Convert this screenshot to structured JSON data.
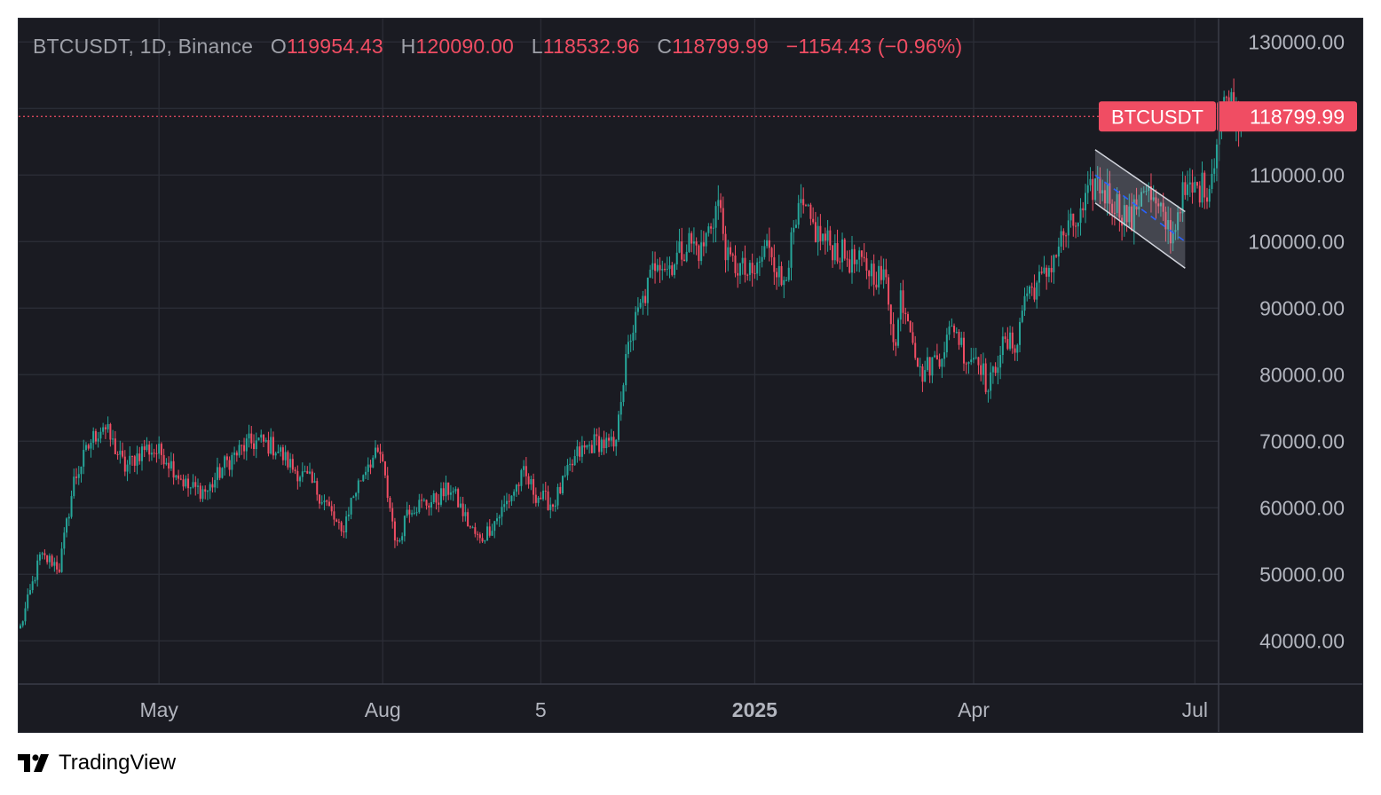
{
  "legend": {
    "symbol": "BTCUSDT, 1D, Binance",
    "o_label": "O",
    "o_value": "119954.43",
    "h_label": "H",
    "h_value": "120090.00",
    "l_label": "L",
    "l_value": "118532.96",
    "c_label": "C",
    "c_value": "118799.99",
    "change": "−1154.43 (−0.96%)"
  },
  "price_tag": {
    "symbol": "BTCUSDT",
    "price": "118799.99"
  },
  "brand": "TradingView",
  "colors": {
    "up": "#26a69a",
    "down": "#f04d63",
    "background": "#1a1b22",
    "grid": "#2d2f38",
    "axis_text": "#b2b5be",
    "channel": "#d1d4dc",
    "midline": "#2962ff"
  },
  "chart_data": {
    "type": "candlestick",
    "title": "BTCUSDT, 1D, Binance",
    "x_range": [
      "2024-03-05",
      "2025-07-29"
    ],
    "ylim": [
      33500,
      133500
    ],
    "y_ticks": [
      {
        "value": 130000,
        "label": "130000.00"
      },
      {
        "value": 110000,
        "label": "110000.00"
      },
      {
        "value": 100000,
        "label": "100000.00"
      },
      {
        "value": 90000,
        "label": "90000.00"
      },
      {
        "value": 80000,
        "label": "80000.00"
      },
      {
        "value": 70000,
        "label": "70000.00"
      },
      {
        "value": 60000,
        "label": "60000.00"
      },
      {
        "value": 50000,
        "label": "50000.00"
      },
      {
        "value": 40000,
        "label": "40000.00"
      }
    ],
    "x_ticks": [
      {
        "date": "2024-05-01",
        "label": "May",
        "bold": false
      },
      {
        "date": "2024-08-01",
        "label": "Aug",
        "bold": false
      },
      {
        "date": "2024-10-05",
        "label": "5",
        "bold": false
      },
      {
        "date": "2025-01-01",
        "label": "2025",
        "bold": true
      },
      {
        "date": "2025-04-01",
        "label": "Apr",
        "bold": false
      },
      {
        "date": "2025-07-01",
        "label": "Jul",
        "bold": false
      }
    ],
    "last_price": 118799.99,
    "grid": true,
    "anchors": [
      [
        "2024-03-05",
        42000
      ],
      [
        "2024-03-13",
        52500
      ],
      [
        "2024-03-18",
        52000
      ],
      [
        "2024-03-21",
        51000
      ],
      [
        "2024-03-27",
        64000
      ],
      [
        "2024-04-03",
        70000
      ],
      [
        "2024-04-08",
        72500
      ],
      [
        "2024-04-17",
        66000
      ],
      [
        "2024-04-25",
        69000
      ],
      [
        "2024-05-03",
        68000
      ],
      [
        "2024-05-13",
        63000
      ],
      [
        "2024-05-21",
        62500
      ],
      [
        "2024-05-28",
        66500
      ],
      [
        "2024-06-06",
        69500
      ],
      [
        "2024-06-11",
        70000
      ],
      [
        "2024-06-18",
        69000
      ],
      [
        "2024-06-25",
        66000
      ],
      [
        "2024-07-02",
        64000
      ],
      [
        "2024-07-09",
        60500
      ],
      [
        "2024-07-15",
        56000
      ],
      [
        "2024-07-19",
        61000
      ],
      [
        "2024-07-26",
        67000
      ],
      [
        "2024-07-31",
        68000
      ],
      [
        "2024-08-05",
        58000
      ],
      [
        "2024-08-07",
        54000
      ],
      [
        "2024-08-11",
        60000
      ],
      [
        "2024-08-22",
        61000
      ],
      [
        "2024-08-29",
        63000
      ],
      [
        "2024-09-06",
        57000
      ],
      [
        "2024-09-10",
        55000
      ],
      [
        "2024-09-18",
        59000
      ],
      [
        "2024-09-28",
        65000
      ],
      [
        "2024-10-03",
        62000
      ],
      [
        "2024-10-10",
        60500
      ],
      [
        "2024-10-20",
        68000
      ],
      [
        "2024-10-28",
        70000
      ],
      [
        "2024-11-05",
        69000
      ],
      [
        "2024-11-06",
        75000
      ],
      [
        "2024-11-11",
        86000
      ],
      [
        "2024-11-17",
        92000
      ],
      [
        "2024-11-22",
        98000
      ],
      [
        "2024-11-26",
        96000
      ],
      [
        "2024-12-05",
        100000
      ],
      [
        "2024-12-10",
        98500
      ],
      [
        "2024-12-17",
        106000
      ],
      [
        "2024-12-21",
        97000
      ],
      [
        "2024-12-26",
        96000
      ],
      [
        "2024-12-31",
        94500
      ],
      [
        "2025-01-07",
        100000
      ],
      [
        "2025-01-12",
        93500
      ],
      [
        "2025-01-20",
        105000
      ],
      [
        "2025-01-27",
        101000
      ],
      [
        "2025-02-03",
        99000
      ],
      [
        "2025-02-10",
        97000
      ],
      [
        "2025-02-17",
        96000
      ],
      [
        "2025-02-24",
        94000
      ],
      [
        "2025-02-28",
        84000
      ],
      [
        "2025-03-02",
        92000
      ],
      [
        "2025-03-06",
        88000
      ],
      [
        "2025-03-10",
        80000
      ],
      [
        "2025-03-18",
        83000
      ],
      [
        "2025-03-24",
        87500
      ],
      [
        "2025-03-29",
        82500
      ],
      [
        "2025-04-03",
        83000
      ],
      [
        "2025-04-07",
        77500
      ],
      [
        "2025-04-12",
        84000
      ],
      [
        "2025-04-19",
        85000
      ],
      [
        "2025-04-22",
        92000
      ],
      [
        "2025-04-30",
        94500
      ],
      [
        "2025-05-08",
        101000
      ],
      [
        "2025-05-15",
        103500
      ],
      [
        "2025-05-21",
        109000
      ],
      [
        "2025-05-29",
        106000
      ],
      [
        "2025-06-05",
        103000
      ],
      [
        "2025-06-10",
        109000
      ],
      [
        "2025-06-14",
        105500
      ],
      [
        "2025-06-22",
        101000
      ],
      [
        "2025-06-25",
        106500
      ],
      [
        "2025-07-02",
        108000
      ],
      [
        "2025-07-07",
        108500
      ],
      [
        "2025-07-11",
        117500
      ],
      [
        "2025-07-14",
        121500
      ],
      [
        "2025-07-20",
        118800
      ]
    ],
    "channel": {
      "upper": [
        [
          "2025-05-21",
          113800
        ],
        [
          "2025-06-27",
          104500
        ]
      ],
      "lower": [
        [
          "2025-05-21",
          105800
        ],
        [
          "2025-06-27",
          96000
        ]
      ],
      "midline": [
        [
          "2025-05-21",
          110000
        ],
        [
          "2025-06-27",
          100000
        ]
      ]
    }
  }
}
